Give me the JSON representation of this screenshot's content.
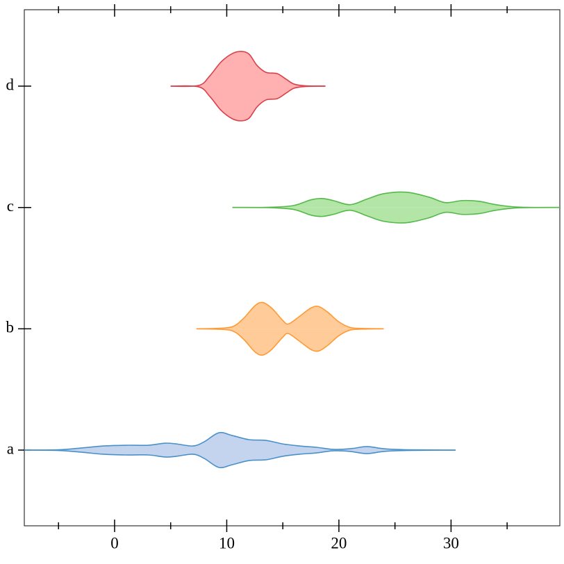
{
  "chart_data": {
    "type": "violin",
    "categories": [
      "a",
      "b",
      "c",
      "d"
    ],
    "xlim": [
      -8.05,
      39.7
    ],
    "xticks": [
      0,
      10,
      20,
      30
    ],
    "xminor_ticks": [
      -5,
      5,
      15,
      25,
      35
    ],
    "ylim": [
      -0.624,
      3.63
    ],
    "series": [
      {
        "name": "a",
        "color": "#4a90c8",
        "fill": "#c4d4ee",
        "x": [
          -8.05,
          -5,
          -3,
          -1,
          1,
          3,
          4.5,
          5.5,
          7,
          8,
          9.3,
          10.5,
          12,
          13.5,
          15,
          16.5,
          18,
          19.5,
          21,
          22.5,
          24,
          26,
          30.4
        ],
        "values": [
          0,
          0.003,
          0.017,
          0.034,
          0.04,
          0.04,
          0.057,
          0.051,
          0.034,
          0.069,
          0.143,
          0.12,
          0.086,
          0.08,
          0.051,
          0.034,
          0.023,
          0.006,
          0.011,
          0.029,
          0.011,
          0.003,
          0
        ]
      },
      {
        "name": "b",
        "color": "#ff9933",
        "fill": "#ffcc99",
        "x": [
          7.3,
          9,
          10.5,
          11.5,
          12.5,
          13.2,
          14,
          15,
          15.5,
          16.5,
          17.5,
          18.2,
          19,
          20,
          21,
          22,
          24
        ],
        "values": [
          0,
          0.003,
          0.017,
          0.086,
          0.189,
          0.217,
          0.171,
          0.069,
          0.04,
          0.103,
          0.171,
          0.183,
          0.137,
          0.057,
          0.011,
          0.003,
          0
        ]
      },
      {
        "name": "c",
        "color": "#55b84a",
        "fill": "#b3e6a6",
        "x": [
          10.5,
          14,
          16,
          17.5,
          18.5,
          19.5,
          21,
          22.5,
          24,
          26,
          28,
          29.5,
          31,
          32.5,
          34,
          36,
          39.7
        ],
        "values": [
          0,
          0.002,
          0.017,
          0.063,
          0.074,
          0.057,
          0.023,
          0.069,
          0.114,
          0.126,
          0.086,
          0.04,
          0.057,
          0.051,
          0.023,
          0.003,
          0
        ]
      },
      {
        "name": "d",
        "color": "#d9404a",
        "fill": "#ffb0b0",
        "x": [
          5,
          7.5,
          8.5,
          9.5,
          10.5,
          11.3,
          12,
          12.7,
          13.5,
          14.5,
          15.3,
          16,
          17,
          18.8
        ],
        "values": [
          0,
          0.006,
          0.086,
          0.2,
          0.269,
          0.286,
          0.263,
          0.171,
          0.114,
          0.103,
          0.057,
          0.017,
          0.003,
          0
        ]
      }
    ]
  }
}
